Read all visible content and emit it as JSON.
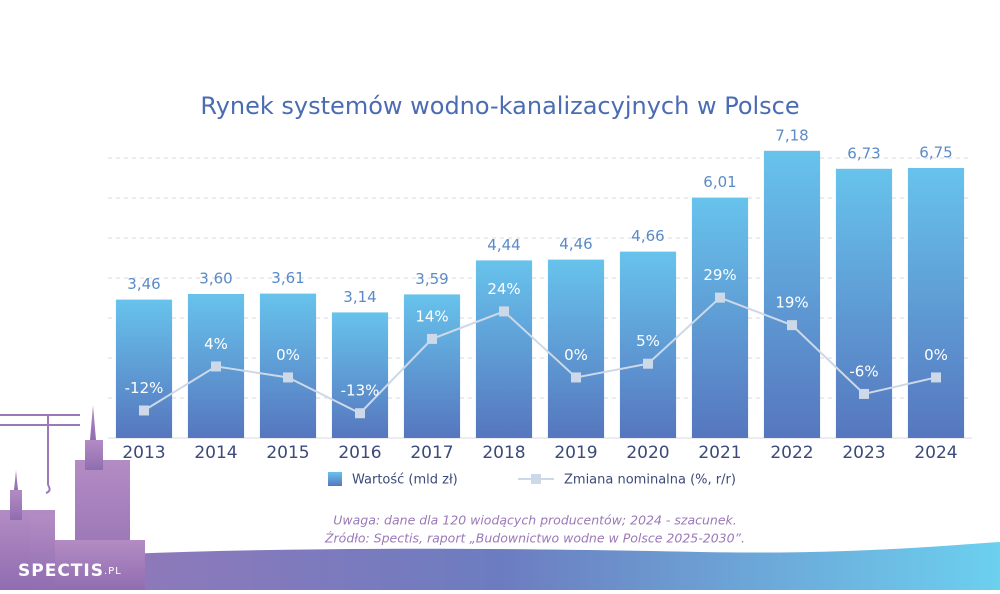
{
  "chart_data": {
    "type": "bar_line",
    "title": "Rynek systemów wodno-kanalizacyjnych w Polsce",
    "categories": [
      "2013",
      "2014",
      "2015",
      "2016",
      "2017",
      "2018",
      "2019",
      "2020",
      "2021",
      "2022",
      "2023",
      "2024"
    ],
    "series": [
      {
        "name": "Wartość (mld zł)",
        "type": "bar",
        "color": "#67c3ec",
        "values": [
          3.46,
          3.6,
          3.61,
          3.14,
          3.59,
          4.44,
          4.46,
          4.66,
          6.01,
          7.18,
          6.73,
          6.75
        ],
        "value_labels": [
          "3,46",
          "3,60",
          "3,61",
          "3,14",
          "3,59",
          "4,44",
          "4,46",
          "4,66",
          "6,01",
          "7,18",
          "6,73",
          "6,75"
        ]
      },
      {
        "name": "Zmiana nominalna (%, r/r)",
        "type": "line",
        "axis": "y2",
        "color": "#cdd8e8",
        "values": [
          -12,
          4,
          0,
          -13,
          14,
          24,
          0,
          5,
          29,
          19,
          -6,
          0
        ],
        "value_labels": [
          "-12%",
          "4%",
          "0%",
          "-13%",
          "14%",
          "24%",
          "0%",
          "5%",
          "29%",
          "19%",
          "-6%",
          "0%"
        ]
      }
    ],
    "ylim": [
      0,
      7.5
    ],
    "yticks": [
      1,
      2,
      3,
      4,
      5,
      6,
      7
    ],
    "y2lim": [
      -22,
      87
    ],
    "grid": true,
    "notes": [
      "Uwaga: dane dla 120 wiodących producentów; 2024 - szacunek.",
      "Źródło: Spectis, raport „Budownictwo wodne w Polsce 2025-2030”."
    ]
  },
  "brand": {
    "name": "SPECTIS",
    "suffix": ".PL"
  }
}
